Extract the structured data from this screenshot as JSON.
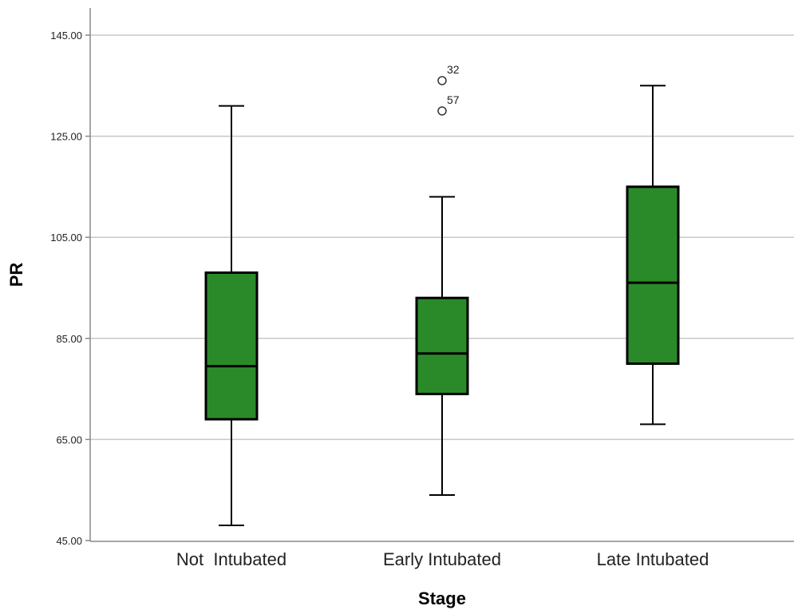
{
  "chart_data": {
    "type": "boxplot",
    "xlabel": "Stage",
    "ylabel": "PR",
    "ylim": [
      45,
      150
    ],
    "yticks": [
      45,
      65,
      85,
      105,
      125,
      145
    ],
    "ytick_labels": [
      "45.00",
      "65.00",
      "85.00",
      "105.00",
      "125.00",
      "145.00"
    ],
    "grid": true,
    "box_color": "#2a8a2a",
    "categories": [
      "Not  Intubated",
      "Early Intubated",
      "Late Intubated"
    ],
    "boxes": [
      {
        "category": "Not  Intubated",
        "whisker_low": 48,
        "q1": 69,
        "median": 79.5,
        "q3": 98,
        "whisker_high": 131,
        "outliers": []
      },
      {
        "category": "Early Intubated",
        "whisker_low": 54,
        "q1": 74,
        "median": 82,
        "q3": 93,
        "whisker_high": 113,
        "outliers": [
          {
            "value": 136,
            "label": "32"
          },
          {
            "value": 130,
            "label": "57"
          }
        ]
      },
      {
        "category": "Late Intubated",
        "whisker_low": 68,
        "q1": 80,
        "median": 96,
        "q3": 115,
        "whisker_high": 135,
        "outliers": []
      }
    ]
  }
}
